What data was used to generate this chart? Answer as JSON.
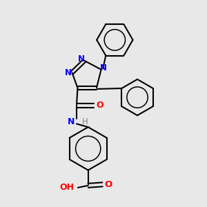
{
  "background_color": "#e8e8e8",
  "bond_color": "#000000",
  "N_color": "#0000ff",
  "O_color": "#ff0000",
  "H_color": "#808080",
  "figsize": [
    3.0,
    3.0
  ],
  "dpi": 100,
  "xlim": [
    0,
    10
  ],
  "ylim": [
    0,
    10
  ],
  "lw": 1.5,
  "fs": 8.5
}
